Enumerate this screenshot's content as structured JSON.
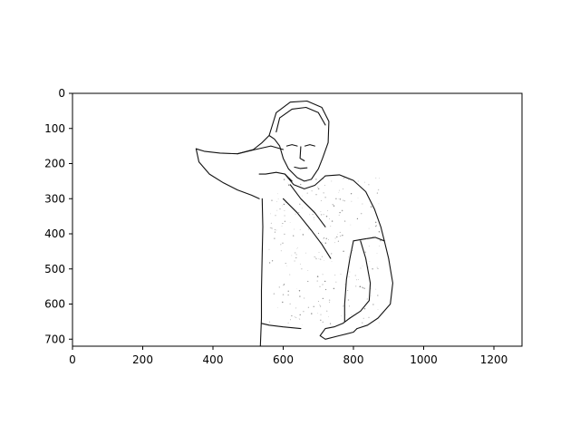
{
  "chart_data": {
    "type": "image",
    "xlim": [
      0,
      1280
    ],
    "ylim": [
      720,
      0
    ],
    "y_inverted": true,
    "x_ticks": [
      0,
      200,
      400,
      600,
      800,
      1000,
      1200
    ],
    "y_ticks": [
      0,
      100,
      200,
      300,
      400,
      500,
      600,
      700
    ],
    "x_tick_labels": [
      "0",
      "200",
      "400",
      "600",
      "800",
      "1000",
      "1200"
    ],
    "y_tick_labels": [
      "0",
      "100",
      "200",
      "300",
      "400",
      "500",
      "600",
      "700"
    ],
    "grid": false,
    "colors": {
      "background": "#ffffff",
      "ink": "#111111",
      "axes": "#000000"
    },
    "image_content": {
      "style": "black-and-white edge/sketch rendering",
      "strokes": [
        {
          "name": "head-outline",
          "points": [
            [
              560,
              120
            ],
            [
              580,
              55
            ],
            [
              620,
              25
            ],
            [
              668,
              22
            ],
            [
              710,
              40
            ],
            [
              730,
              80
            ],
            [
              728,
              140
            ],
            [
              712,
              185
            ],
            [
              700,
              215
            ],
            [
              680,
              245
            ],
            [
              660,
              250
            ],
            [
              640,
              240
            ],
            [
              615,
              215
            ],
            [
              600,
              185
            ],
            [
              590,
              150
            ],
            [
              575,
              130
            ],
            [
              560,
              120
            ]
          ]
        },
        {
          "name": "hair-line",
          "points": [
            [
              580,
              110
            ],
            [
              590,
              70
            ],
            [
              625,
              45
            ],
            [
              665,
              40
            ],
            [
              700,
              55
            ],
            [
              720,
              90
            ]
          ]
        },
        {
          "name": "right-eye",
          "points": [
            [
              610,
              150
            ],
            [
              625,
              146
            ],
            [
              640,
              150
            ]
          ]
        },
        {
          "name": "left-eye",
          "points": [
            [
              662,
              150
            ],
            [
              676,
              146
            ],
            [
              690,
              150
            ]
          ]
        },
        {
          "name": "nose",
          "points": [
            [
              650,
              152
            ],
            [
              648,
              185
            ],
            [
              660,
              192
            ]
          ]
        },
        {
          "name": "mouth",
          "points": [
            [
              632,
              210
            ],
            [
              648,
              214
            ],
            [
              668,
              212
            ]
          ]
        },
        {
          "name": "raised-arm-outer",
          "points": [
            [
              352,
              158
            ],
            [
              360,
              195
            ],
            [
              390,
              230
            ],
            [
              430,
              255
            ],
            [
              470,
              275
            ],
            [
              510,
              290
            ],
            [
              532,
              300
            ]
          ]
        },
        {
          "name": "raised-arm-inner",
          "points": [
            [
              352,
              158
            ],
            [
              375,
              165
            ],
            [
              420,
              170
            ],
            [
              470,
              172
            ],
            [
              520,
              160
            ],
            [
              565,
              150
            ],
            [
              600,
              160
            ]
          ]
        },
        {
          "name": "raised-arm-forearm",
          "points": [
            [
              560,
              120
            ],
            [
              540,
              140
            ],
            [
              515,
              160
            ],
            [
              470,
              172
            ]
          ]
        },
        {
          "name": "left-shoulder",
          "points": [
            [
              532,
              230
            ],
            [
              550,
              230
            ],
            [
              580,
              225
            ],
            [
              605,
              230
            ],
            [
              625,
              250
            ]
          ]
        },
        {
          "name": "collar",
          "points": [
            [
              605,
              230
            ],
            [
              630,
              260
            ],
            [
              660,
              272
            ],
            [
              690,
              262
            ],
            [
              720,
              235
            ]
          ]
        },
        {
          "name": "right-shoulder",
          "points": [
            [
              720,
              235
            ],
            [
              760,
              232
            ],
            [
              800,
              248
            ],
            [
              835,
              280
            ],
            [
              860,
              330
            ],
            [
              878,
              380
            ],
            [
              888,
              420
            ]
          ]
        },
        {
          "name": "shirt-left-side",
          "points": [
            [
              540,
              300
            ],
            [
              542,
              380
            ],
            [
              540,
              460
            ],
            [
              538,
              560
            ],
            [
              538,
              640
            ],
            [
              535,
              720
            ]
          ]
        },
        {
          "name": "shirt-right-side",
          "points": [
            [
              800,
              420
            ],
            [
              790,
              470
            ],
            [
              780,
              530
            ],
            [
              775,
              600
            ],
            [
              775,
              650
            ]
          ]
        },
        {
          "name": "right-arm-outer",
          "points": [
            [
              888,
              420
            ],
            [
              900,
              470
            ],
            [
              912,
              540
            ],
            [
              905,
              600
            ],
            [
              870,
              640
            ],
            [
              840,
              660
            ],
            [
              810,
              670
            ]
          ]
        },
        {
          "name": "right-arm-inner",
          "points": [
            [
              820,
              420
            ],
            [
              835,
              470
            ],
            [
              848,
              540
            ],
            [
              845,
              590
            ],
            [
              820,
              620
            ],
            [
              790,
              640
            ]
          ]
        },
        {
          "name": "sleeve-edge",
          "points": [
            [
              800,
              420
            ],
            [
              830,
              415
            ],
            [
              862,
              410
            ],
            [
              888,
              420
            ]
          ]
        },
        {
          "name": "hand-on-hip",
          "points": [
            [
              790,
              640
            ],
            [
              770,
              655
            ],
            [
              745,
              665
            ],
            [
              720,
              670
            ],
            [
              705,
              690
            ],
            [
              720,
              700
            ],
            [
              760,
              690
            ],
            [
              800,
              680
            ],
            [
              810,
              670
            ]
          ]
        },
        {
          "name": "waist-left",
          "points": [
            [
              538,
              655
            ],
            [
              560,
              660
            ],
            [
              600,
              665
            ],
            [
              650,
              670
            ]
          ]
        },
        {
          "name": "shirt-fold-1",
          "points": [
            [
              600,
              300
            ],
            [
              640,
              340
            ],
            [
              680,
              390
            ],
            [
              710,
              430
            ],
            [
              735,
              470
            ]
          ]
        },
        {
          "name": "shirt-fold-2",
          "points": [
            [
              620,
              260
            ],
            [
              650,
              300
            ],
            [
              690,
              340
            ],
            [
              720,
              380
            ]
          ]
        }
      ]
    }
  }
}
